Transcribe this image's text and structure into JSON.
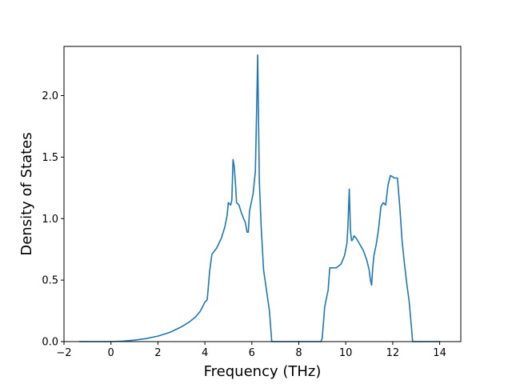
{
  "chart_data": {
    "type": "line",
    "title": "",
    "xlabel": "Frequency (THz)",
    "ylabel": "Density of States",
    "xlim": [
      -2,
      14.9
    ],
    "ylim": [
      0,
      2.4
    ],
    "xticks": [
      -2,
      0,
      2,
      4,
      6,
      8,
      10,
      12,
      14
    ],
    "xtick_labels": [
      "−2",
      "0",
      "2",
      "4",
      "6",
      "8",
      "10",
      "12",
      "14"
    ],
    "yticks": [
      0.0,
      0.5,
      1.0,
      1.5,
      2.0
    ],
    "ytick_labels": [
      "0.0",
      "0.5",
      "1.0",
      "1.5",
      "2.0"
    ],
    "grid": false,
    "legend": "none",
    "series": [
      {
        "color": "#1f77b4",
        "x": [
          -1.35,
          0.0,
          0.5,
          1.0,
          1.5,
          2.0,
          2.5,
          3.0,
          3.3,
          3.6,
          3.8,
          4.0,
          4.1,
          4.15,
          4.2,
          4.3,
          4.5,
          4.7,
          4.85,
          4.95,
          5.0,
          5.1,
          5.15,
          5.2,
          5.25,
          5.3,
          5.35,
          5.45,
          5.55,
          5.65,
          5.72,
          5.8,
          5.85,
          5.9,
          6.05,
          6.15,
          6.2,
          6.25,
          6.32,
          6.4,
          6.5,
          6.6,
          6.75,
          6.85,
          7.0,
          7.5,
          8.5,
          8.95,
          9.0,
          9.05,
          9.1,
          9.25,
          9.32,
          9.4,
          9.6,
          9.8,
          9.95,
          10.05,
          10.1,
          10.15,
          10.2,
          10.25,
          10.3,
          10.35,
          10.45,
          10.6,
          10.75,
          10.9,
          11.0,
          11.05,
          11.1,
          11.15,
          11.2,
          11.3,
          11.4,
          11.5,
          11.6,
          11.7,
          11.8,
          11.9,
          12.0,
          12.05,
          12.2,
          12.3,
          12.4,
          12.5,
          12.6,
          12.7,
          12.8,
          12.85,
          13.0,
          13.5,
          14.0
        ],
        "y": [
          0.0,
          0.0,
          0.004,
          0.012,
          0.025,
          0.045,
          0.075,
          0.12,
          0.155,
          0.2,
          0.245,
          0.32,
          0.34,
          0.45,
          0.57,
          0.71,
          0.76,
          0.84,
          0.93,
          1.03,
          1.13,
          1.11,
          1.15,
          1.48,
          1.42,
          1.3,
          1.13,
          1.11,
          1.05,
          1.0,
          0.97,
          0.89,
          0.89,
          1.06,
          1.2,
          1.38,
          1.85,
          2.33,
          1.3,
          0.93,
          0.58,
          0.45,
          0.25,
          0.0,
          0.0,
          0.0,
          0.0,
          0.0,
          0.03,
          0.15,
          0.28,
          0.42,
          0.6,
          0.6,
          0.6,
          0.63,
          0.7,
          0.8,
          0.97,
          1.24,
          0.9,
          0.82,
          0.83,
          0.86,
          0.84,
          0.79,
          0.74,
          0.66,
          0.58,
          0.5,
          0.46,
          0.6,
          0.7,
          0.79,
          0.92,
          1.1,
          1.13,
          1.11,
          1.27,
          1.35,
          1.34,
          1.33,
          1.33,
          1.1,
          0.82,
          0.63,
          0.47,
          0.33,
          0.11,
          0.0,
          0.0,
          0.0,
          0.0
        ]
      }
    ]
  }
}
